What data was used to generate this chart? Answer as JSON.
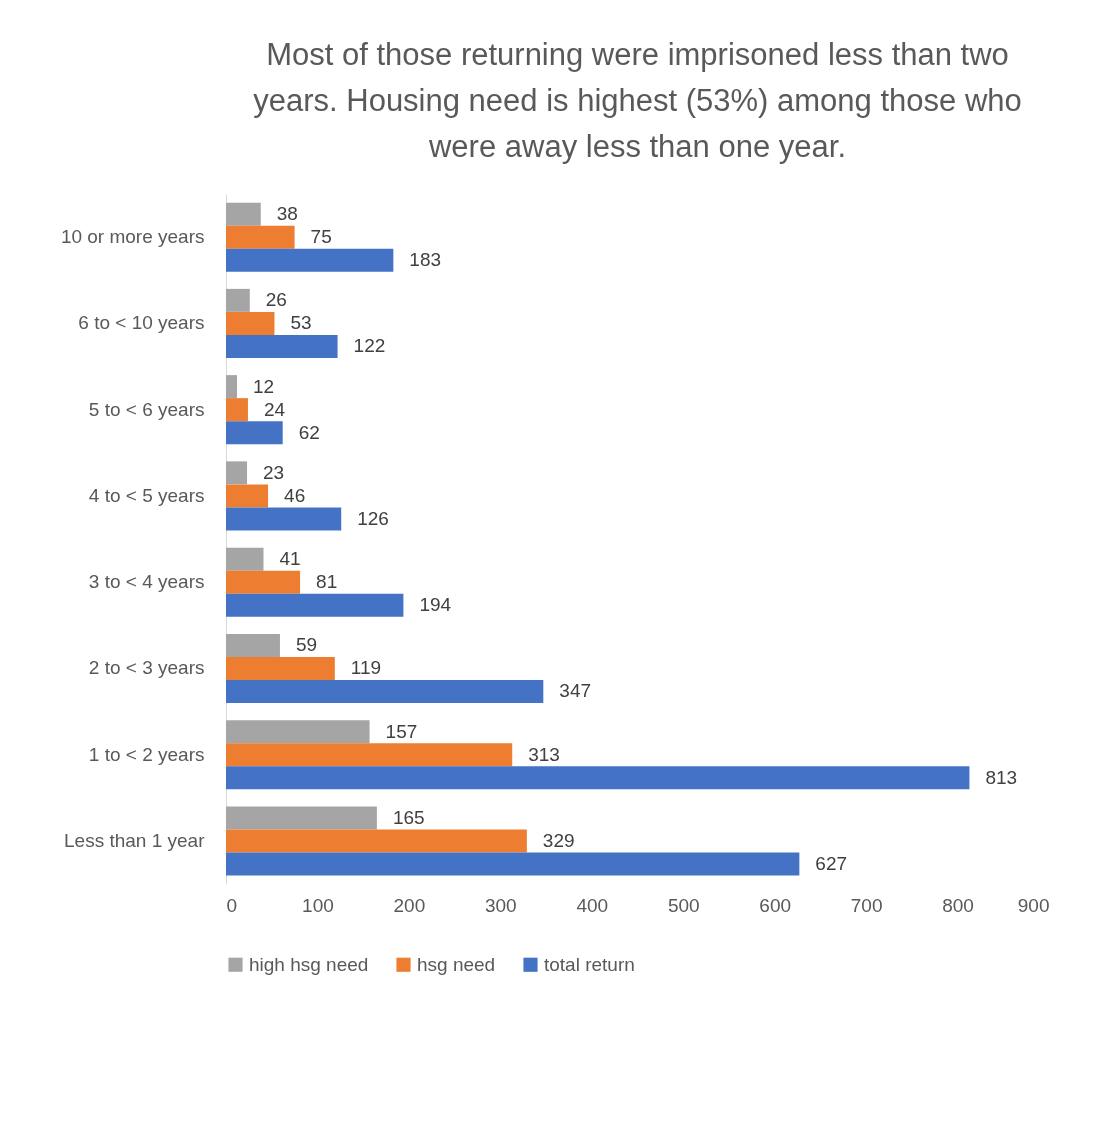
{
  "chart_data": {
    "type": "bar",
    "orientation": "horizontal",
    "title": "Most of those returning were imprisoned less than two years. Housing need is highest (53%) among those who were away less than one year.",
    "categories": [
      "10 or more years",
      "6 to < 10 years",
      "5 to < 6 years",
      "4 to < 5 years",
      "3 to < 4 years",
      "2 to < 3 years",
      "1 to < 2 years",
      "Less than 1 year"
    ],
    "series": [
      {
        "name": "high hsg need",
        "color": "#a5a5a5",
        "values": [
          38,
          26,
          12,
          23,
          41,
          59,
          157,
          165
        ]
      },
      {
        "name": "hsg need",
        "color": "#ed7d31",
        "values": [
          75,
          53,
          24,
          46,
          81,
          119,
          313,
          329
        ]
      },
      {
        "name": "total return",
        "color": "#4472c4",
        "values": [
          183,
          122,
          62,
          126,
          194,
          347,
          813,
          627
        ]
      }
    ],
    "xlim": [
      0,
      900
    ],
    "xticks": [
      0,
      100,
      200,
      300,
      400,
      500,
      600,
      700,
      800,
      900
    ],
    "data_labels": true,
    "grid": false,
    "legend": "bottom"
  }
}
